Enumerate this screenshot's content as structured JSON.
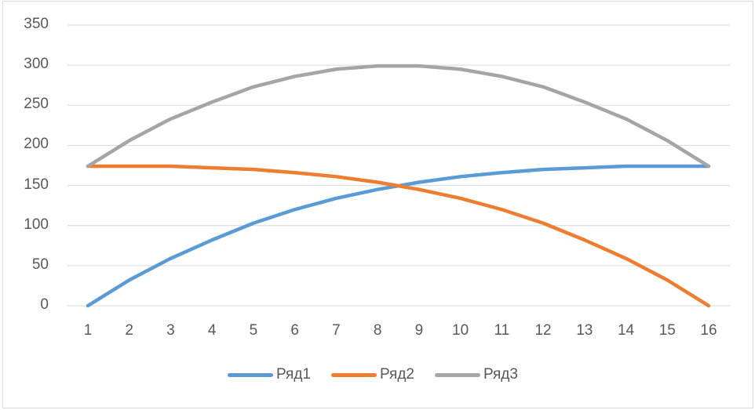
{
  "chart_data": {
    "type": "line",
    "title": "",
    "xlabel": "",
    "ylabel": "",
    "categories": [
      "1",
      "2",
      "3",
      "4",
      "5",
      "6",
      "7",
      "8",
      "9",
      "10",
      "11",
      "12",
      "13",
      "14",
      "15",
      "16"
    ],
    "ylim": [
      0,
      350
    ],
    "yticks": [
      "0",
      "50",
      "100",
      "150",
      "200",
      "250",
      "300",
      "350"
    ],
    "grid": true,
    "legend_position": "bottom",
    "series": [
      {
        "name": "Ряд1",
        "color": "#5b9bd5",
        "values": [
          0,
          32,
          59,
          82,
          103,
          120,
          134,
          145,
          154,
          161,
          166,
          170,
          172,
          174,
          174,
          174
        ]
      },
      {
        "name": "Ряд2",
        "color": "#ed7d31",
        "values": [
          174,
          174,
          174,
          172,
          170,
          166,
          161,
          154,
          145,
          134,
          120,
          103,
          82,
          59,
          32,
          0
        ]
      },
      {
        "name": "Ряд3",
        "color": "#a5a5a5",
        "values": [
          174,
          206,
          233,
          254,
          273,
          286,
          295,
          299,
          299,
          295,
          286,
          273,
          254,
          233,
          206,
          174
        ]
      }
    ]
  },
  "legend": {
    "items": [
      {
        "label": "Ряд1",
        "color": "#5b9bd5"
      },
      {
        "label": "Ряд2",
        "color": "#ed7d31"
      },
      {
        "label": "Ряд3",
        "color": "#a5a5a5"
      }
    ]
  }
}
